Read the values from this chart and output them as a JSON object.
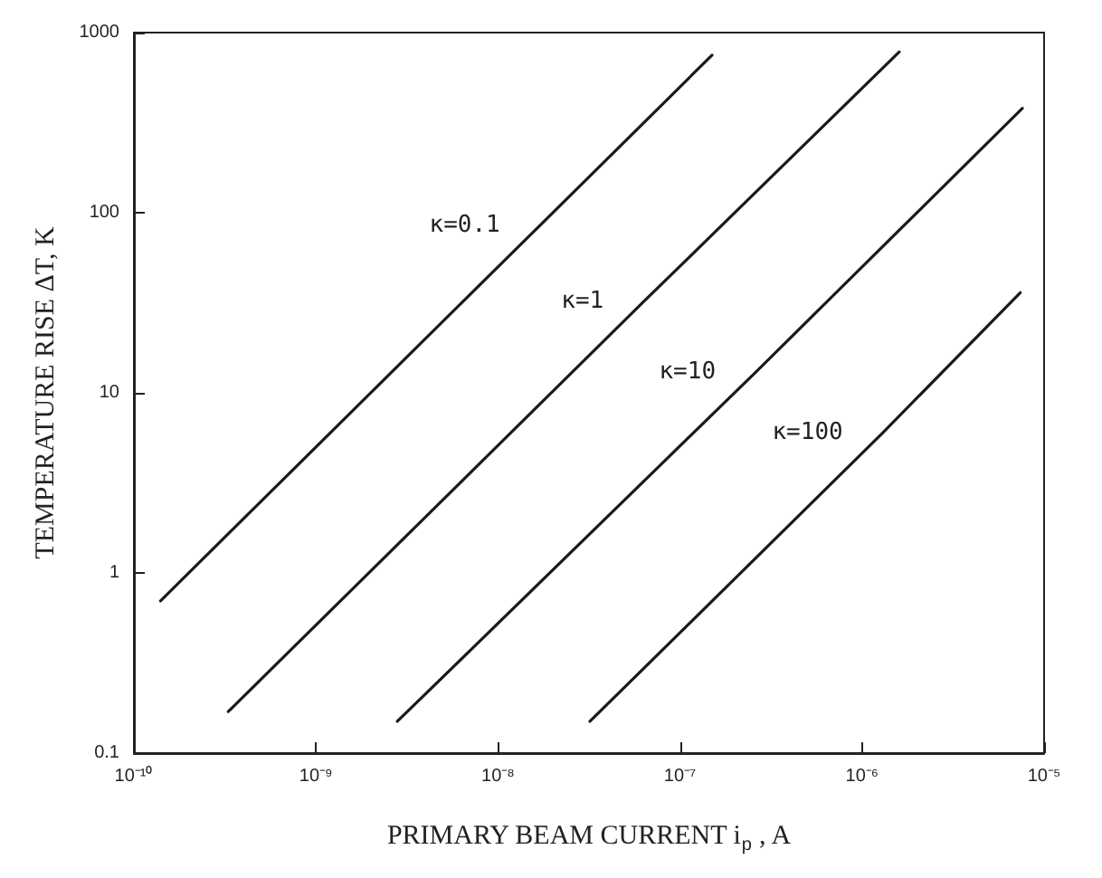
{
  "chart_data": {
    "type": "line",
    "xlabel": "PRIMARY BEAM CURRENT i$_{p}$ , A",
    "ylabel": "TEMPERATURE RISE ΔT, K",
    "log": "xy",
    "grid": false,
    "legend": false,
    "marker": "none",
    "line_style": "solid",
    "xlim": [
      1e-10,
      1e-05
    ],
    "xticks": [
      {
        "value": 1e-10,
        "label": "10⁻¹⁰"
      },
      {
        "value": 1e-09,
        "label": "10⁻⁹"
      },
      {
        "value": 1e-08,
        "label": "10⁻⁸"
      },
      {
        "value": 1e-07,
        "label": "10⁻⁷"
      },
      {
        "value": 1e-06,
        "label": "10⁻⁶"
      },
      {
        "value": 1e-05,
        "label": "10⁻⁵"
      }
    ],
    "ylim": [
      0.1,
      1000
    ],
    "yticks": [
      0.1,
      1,
      10,
      100,
      1000
    ],
    "series": [
      {
        "name": "κ=0.1",
        "color": "#1a1a1a",
        "x": [
          1.4e-10,
          1.7e-08,
          1.5e-07
        ],
        "values": [
          0.7,
          85,
          750
        ]
      },
      {
        "name": "κ=1",
        "color": "#1a1a1a",
        "x": [
          3.3e-10,
          6.3e-08,
          1.6e-06
        ],
        "values": [
          0.17,
          32,
          780
        ]
      },
      {
        "name": "κ=10",
        "color": "#1a1a1a",
        "x": [
          2.8e-09,
          2.6e-07,
          7.6e-06
        ],
        "values": [
          0.15,
          13,
          380
        ]
      },
      {
        "name": "κ=100",
        "color": "#1a1a1a",
        "x": [
          3.2e-08,
          1.3e-06,
          7.4e-06
        ],
        "values": [
          0.15,
          6,
          36
        ]
      }
    ]
  }
}
